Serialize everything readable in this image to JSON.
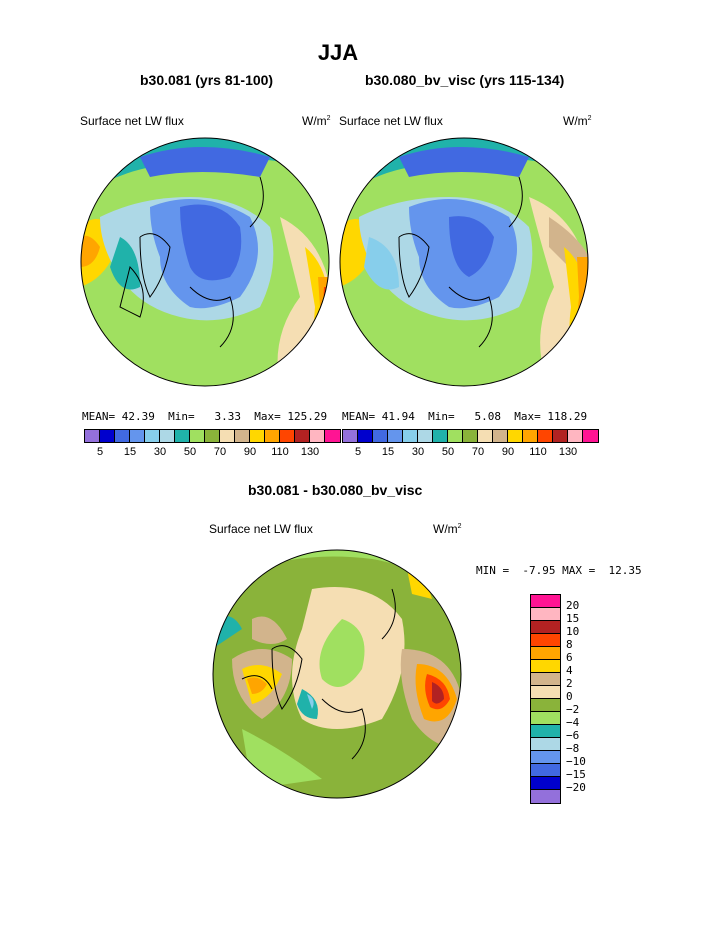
{
  "title": "JJA",
  "panels": [
    {
      "subtitle": "b30.081 (yrs 81-100)",
      "field": "Surface net LW flux",
      "units": "W/m",
      "units_sup": "2",
      "stats": {
        "mean_label": "MEAN=",
        "mean": "42.39",
        "min_label": "Min=",
        "min": "3.33",
        "max_label": "Max=",
        "max": "125.29"
      }
    },
    {
      "subtitle": "b30.080_bv_visc (yrs 115-134)",
      "field": "Surface net LW flux",
      "units": "W/m",
      "units_sup": "2",
      "stats": {
        "mean_label": "MEAN=",
        "mean": "41.94",
        "min_label": "Min=",
        "min": "5.08",
        "max_label": "Max=",
        "max": "118.29"
      }
    }
  ],
  "colorbar_top": {
    "colors": [
      "#9370db",
      "#0000cd",
      "#4169e1",
      "#6495ed",
      "#87ceeb",
      "#add8e6",
      "#20b2aa",
      "#a0e060",
      "#8ab33a",
      "#f5deb3",
      "#d2b48c",
      "#ffd700",
      "#ffa500",
      "#ff4500",
      "#b22222",
      "#ffb6c1",
      "#ff1493"
    ],
    "labels": [
      "5",
      "15",
      "30",
      "50",
      "70",
      "90",
      "110",
      "130"
    ]
  },
  "diff": {
    "subtitle": "b30.081 - b30.080_bv_visc",
    "field": "Surface net LW flux",
    "units": "W/m",
    "units_sup": "2",
    "minmax": "MIN =  -7.95 MAX =  12.35",
    "colorbar": {
      "colors": [
        "#ff1493",
        "#ffb6c1",
        "#b22222",
        "#ff4500",
        "#ffa500",
        "#ffd700",
        "#d2b48c",
        "#f5deb3",
        "#8ab33a",
        "#a0e060",
        "#20b2aa",
        "#add8e6",
        "#6495ed",
        "#4169e1",
        "#0000cd",
        "#9370db"
      ],
      "labels": [
        "20",
        "15",
        "10",
        "8",
        "6",
        "4",
        "2",
        "0",
        "−2",
        "−4",
        "−6",
        "−8",
        "−10",
        "−15",
        "−20"
      ]
    }
  },
  "legend_icon": "colorbar-swatch"
}
